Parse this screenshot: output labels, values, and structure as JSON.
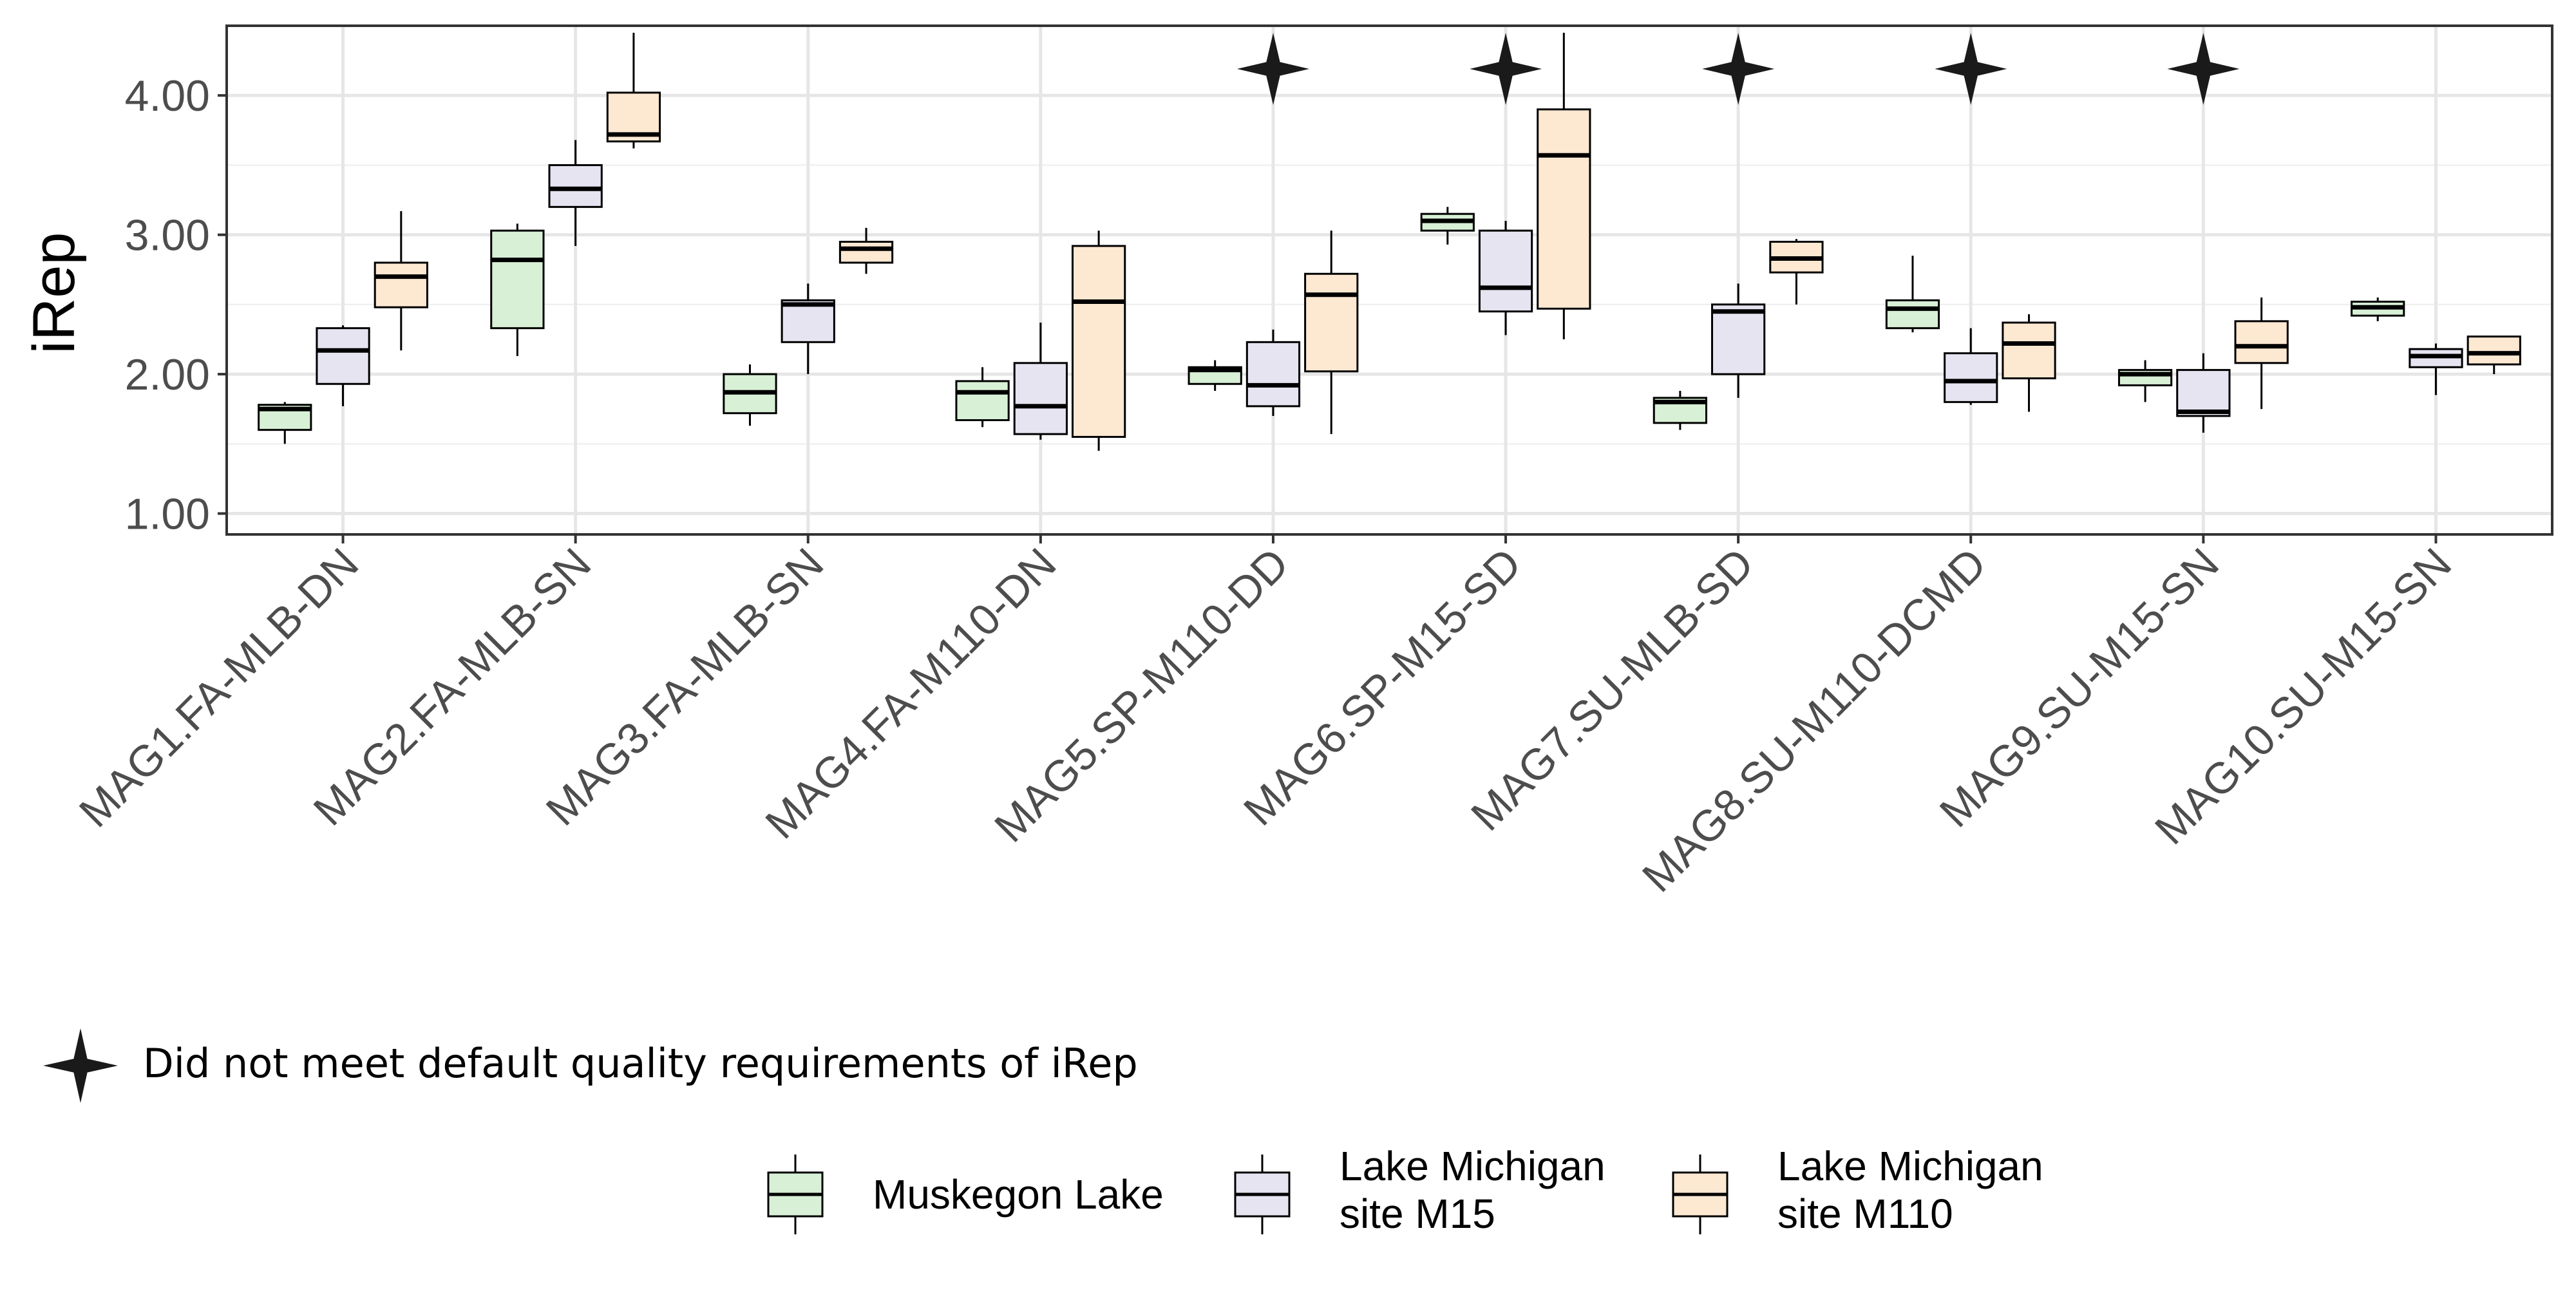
{
  "chart_data": {
    "type": "boxplot",
    "ylabel": "iRep",
    "xlabel": "",
    "ylim": [
      0.85,
      4.5
    ],
    "yticks": [
      1.0,
      2.0,
      3.0,
      4.0
    ],
    "ytick_labels": [
      "1.00",
      "2.00",
      "3.00",
      "4.00"
    ],
    "grid": true,
    "categories": [
      "MAG1.FA-MLB-DN",
      "MAG2.FA-MLB-SN",
      "MAG3.FA-MLB-SN",
      "MAG4.FA-M110-DN",
      "MAG5.SP-M110-DD",
      "MAG6.SP-M15-SD",
      "MAG7.SU-MLB-SD",
      "MAG8.SU-M110-DCMD",
      "MAG9.SU-M15-SN",
      "MAG10.SU-M15-SN"
    ],
    "flagged": [
      false,
      false,
      false,
      false,
      true,
      true,
      true,
      true,
      true,
      false
    ],
    "flag_note": "Did not meet default quality requirements of iRep",
    "legend_position": "bottom",
    "series": [
      {
        "legend_lines": [
          "Muskegon Lake"
        ],
        "color": "#d8f0d6",
        "boxes": [
          {
            "whisker_low": 1.5,
            "q1": 1.6,
            "median": 1.75,
            "q3": 1.78,
            "whisker_high": 1.8
          },
          {
            "whisker_low": 2.13,
            "q1": 2.33,
            "median": 2.82,
            "q3": 3.03,
            "whisker_high": 3.08
          },
          {
            "whisker_low": 1.63,
            "q1": 1.72,
            "median": 1.87,
            "q3": 2.0,
            "whisker_high": 2.07
          },
          {
            "whisker_low": 1.62,
            "q1": 1.67,
            "median": 1.87,
            "q3": 1.95,
            "whisker_high": 2.05
          },
          {
            "whisker_low": 1.88,
            "q1": 1.93,
            "median": 2.03,
            "q3": 2.05,
            "whisker_high": 2.1
          },
          {
            "whisker_low": 2.93,
            "q1": 3.03,
            "median": 3.1,
            "q3": 3.15,
            "whisker_high": 3.2
          },
          {
            "whisker_low": 1.6,
            "q1": 1.65,
            "median": 1.8,
            "q3": 1.83,
            "whisker_high": 1.88
          },
          {
            "whisker_low": 2.3,
            "q1": 2.33,
            "median": 2.47,
            "q3": 2.53,
            "whisker_high": 2.85
          },
          {
            "whisker_low": 1.8,
            "q1": 1.92,
            "median": 2.0,
            "q3": 2.03,
            "whisker_high": 2.1
          },
          {
            "whisker_low": 2.38,
            "q1": 2.42,
            "median": 2.48,
            "q3": 2.52,
            "whisker_high": 2.55
          }
        ]
      },
      {
        "legend_lines": [
          "Lake Michigan",
          "site M15"
        ],
        "color": "#e6e4f1",
        "boxes": [
          {
            "whisker_low": 1.77,
            "q1": 1.93,
            "median": 2.17,
            "q3": 2.33,
            "whisker_high": 2.35
          },
          {
            "whisker_low": 2.92,
            "q1": 3.2,
            "median": 3.33,
            "q3": 3.5,
            "whisker_high": 3.68
          },
          {
            "whisker_low": 2.0,
            "q1": 2.23,
            "median": 2.5,
            "q3": 2.53,
            "whisker_high": 2.65
          },
          {
            "whisker_low": 1.53,
            "q1": 1.57,
            "median": 1.77,
            "q3": 2.08,
            "whisker_high": 2.37
          },
          {
            "whisker_low": 1.7,
            "q1": 1.77,
            "median": 1.92,
            "q3": 2.23,
            "whisker_high": 2.32
          },
          {
            "whisker_low": 2.28,
            "q1": 2.45,
            "median": 2.62,
            "q3": 3.03,
            "whisker_high": 3.1
          },
          {
            "whisker_low": 1.83,
            "q1": 2.0,
            "median": 2.45,
            "q3": 2.5,
            "whisker_high": 2.65
          },
          {
            "whisker_low": 1.78,
            "q1": 1.8,
            "median": 1.95,
            "q3": 2.15,
            "whisker_high": 2.33
          },
          {
            "whisker_low": 1.58,
            "q1": 1.7,
            "median": 1.73,
            "q3": 2.03,
            "whisker_high": 2.15
          },
          {
            "whisker_low": 1.85,
            "q1": 2.05,
            "median": 2.13,
            "q3": 2.18,
            "whisker_high": 2.22
          }
        ]
      },
      {
        "legend_lines": [
          "Lake Michigan",
          "site M110"
        ],
        "color": "#fde8d2",
        "boxes": [
          {
            "whisker_low": 2.17,
            "q1": 2.48,
            "median": 2.7,
            "q3": 2.8,
            "whisker_high": 3.17
          },
          {
            "whisker_low": 3.62,
            "q1": 3.67,
            "median": 3.72,
            "q3": 4.02,
            "whisker_high": 4.45
          },
          {
            "whisker_low": 2.72,
            "q1": 2.8,
            "median": 2.9,
            "q3": 2.95,
            "whisker_high": 3.05
          },
          {
            "whisker_low": 1.45,
            "q1": 1.55,
            "median": 2.52,
            "q3": 2.92,
            "whisker_high": 3.03
          },
          {
            "whisker_low": 1.57,
            "q1": 2.02,
            "median": 2.57,
            "q3": 2.72,
            "whisker_high": 3.03
          },
          {
            "whisker_low": 2.25,
            "q1": 2.47,
            "median": 3.57,
            "q3": 3.9,
            "whisker_high": 4.45
          },
          {
            "whisker_low": 2.5,
            "q1": 2.73,
            "median": 2.83,
            "q3": 2.95,
            "whisker_high": 2.97
          },
          {
            "whisker_low": 1.73,
            "q1": 1.97,
            "median": 2.22,
            "q3": 2.37,
            "whisker_high": 2.43
          },
          {
            "whisker_low": 1.75,
            "q1": 2.08,
            "median": 2.2,
            "q3": 2.38,
            "whisker_high": 2.55
          },
          {
            "whisker_low": 2.0,
            "q1": 2.07,
            "median": 2.15,
            "q3": 2.27,
            "whisker_high": 2.27
          }
        ]
      }
    ]
  }
}
